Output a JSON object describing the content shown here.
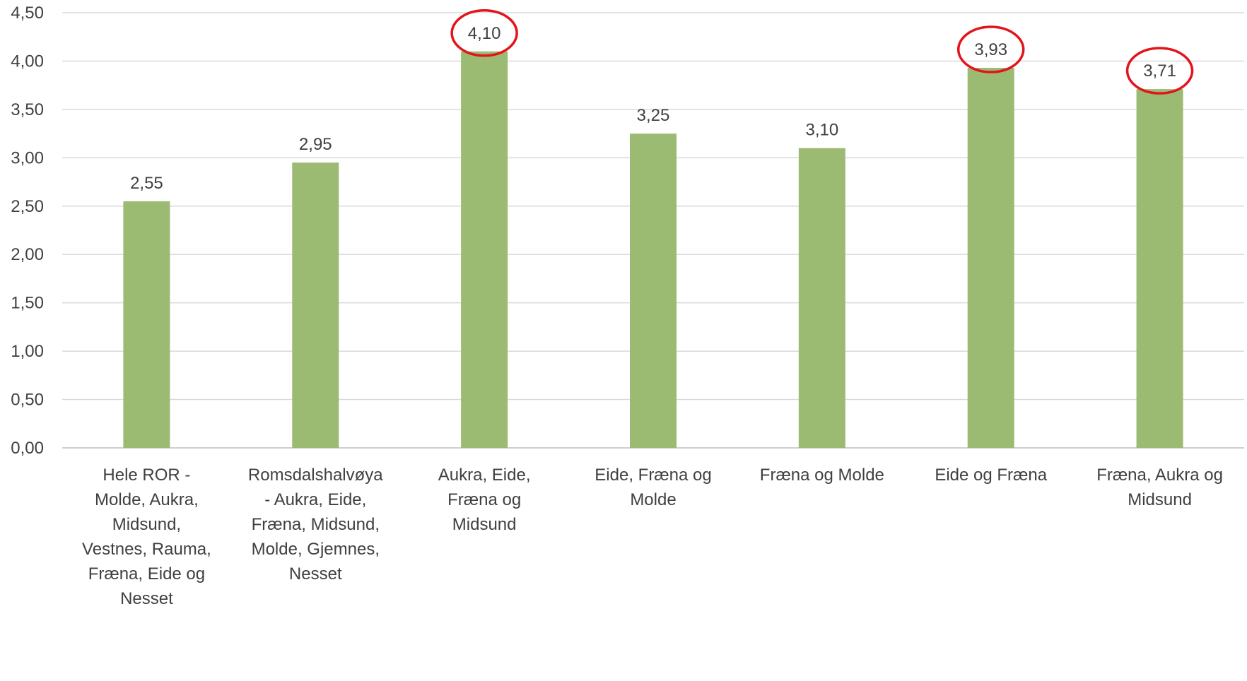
{
  "chart_data": {
    "type": "bar",
    "title": "",
    "xlabel": "",
    "ylabel": "",
    "ylim": [
      0,
      4.5
    ],
    "ytick_step": 0.5,
    "yticks": [
      "0,00",
      "0,50",
      "1,00",
      "1,50",
      "2,00",
      "2,50",
      "3,00",
      "3,50",
      "4,00",
      "4,50"
    ],
    "grid": true,
    "legend": "none",
    "categories": [
      [
        "Hele ROR -",
        "Molde, Aukra,",
        "Midsund,",
        "Vestnes, Rauma,",
        "Fræna, Eide og",
        "Nesset"
      ],
      [
        "Romsdalshalvøya",
        "- Aukra, Eide,",
        "Fræna, Midsund,",
        "Molde, Gjemnes,",
        "Nesset"
      ],
      [
        "Aukra, Eide,",
        "Fræna og",
        "Midsund"
      ],
      [
        "Eide, Fræna og",
        "Molde"
      ],
      [
        "Fræna og Molde"
      ],
      [
        "Eide og Fræna"
      ],
      [
        "Fræna, Aukra og",
        "Midsund"
      ]
    ],
    "values": [
      2.55,
      2.95,
      4.1,
      3.25,
      3.1,
      3.93,
      3.71
    ],
    "data_labels": [
      "2,55",
      "2,95",
      "4,10",
      "3,25",
      "3,10",
      "3,93",
      "3,71"
    ],
    "highlighted": [
      false,
      false,
      true,
      false,
      false,
      true,
      true
    ],
    "colors": {
      "bar": "#9bbb73",
      "grid": "#d9d9d9",
      "axis": "#bfbfbf",
      "text": "#404040",
      "highlight": "#e3141b"
    }
  }
}
